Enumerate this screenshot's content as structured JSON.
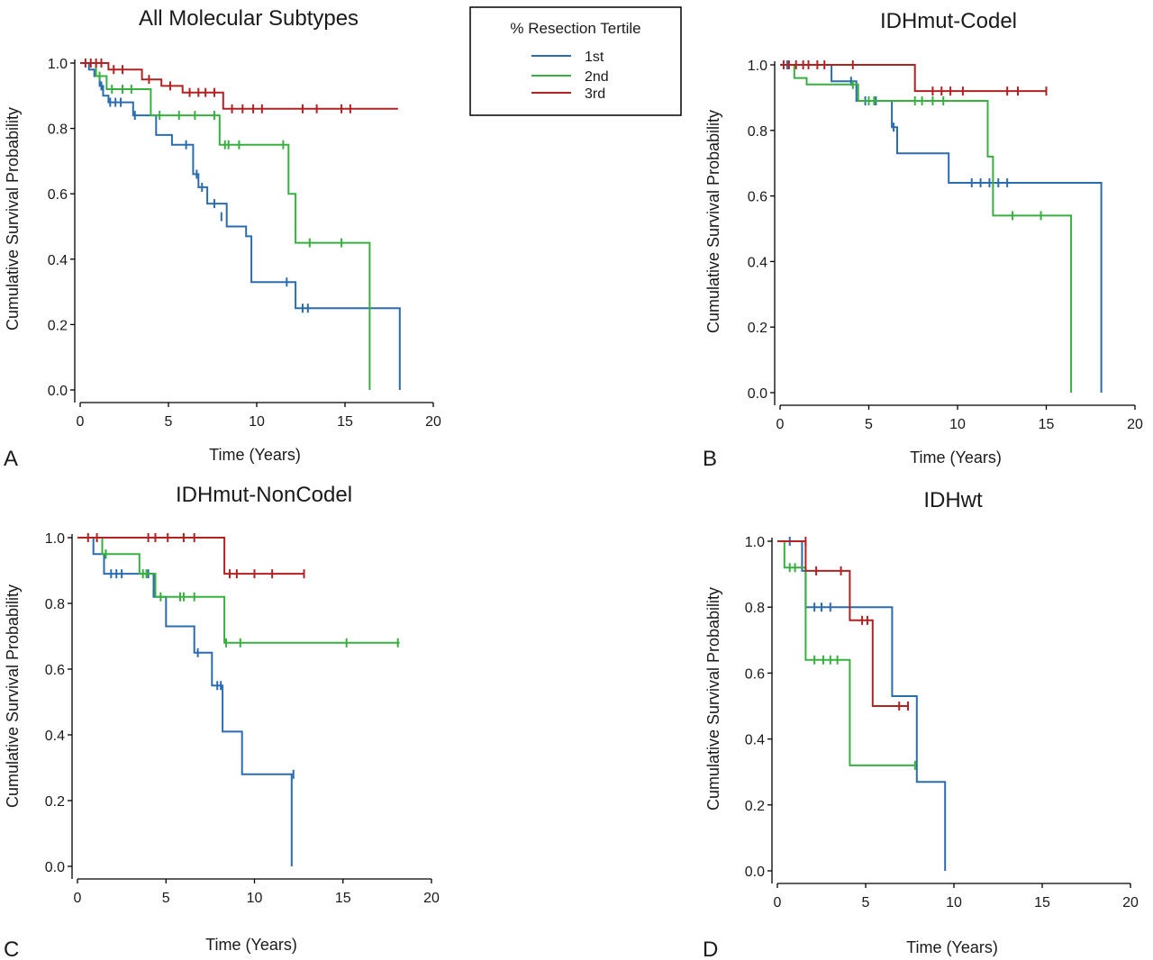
{
  "figure": {
    "legend": {
      "title": "% Resection Tertile",
      "position": "top-center",
      "items": [
        {
          "label": "1st",
          "color": "#2b6cb0"
        },
        {
          "label": "2nd",
          "color": "#38b040"
        },
        {
          "label": "3rd",
          "color": "#b22222"
        }
      ]
    }
  },
  "chart_data": [
    {
      "panel_label": "A",
      "type": "line",
      "subtype": "kaplan-meier step",
      "title": "All Molecular Subtypes",
      "xlabel": "Time (Years)",
      "ylabel": "Cumulative Survival Probability",
      "xlim": [
        0,
        20
      ],
      "ylim": [
        0,
        1.0
      ],
      "xticks": [
        "0",
        "5",
        "10",
        "15",
        "20"
      ],
      "yticks": [
        "0.0",
        "0.2",
        "0.4",
        "0.6",
        "0.8",
        "1.0"
      ],
      "grid": false,
      "series": [
        {
          "name": "1st",
          "color": "#2b6cb0",
          "steps": [
            [
              0,
              1.0
            ],
            [
              0.5,
              0.98
            ],
            [
              0.8,
              0.96
            ],
            [
              1.1,
              0.93
            ],
            [
              1.3,
              0.9
            ],
            [
              1.6,
              0.88
            ],
            [
              3.0,
              0.84
            ],
            [
              4.3,
              0.78
            ],
            [
              5.2,
              0.75
            ],
            [
              6.4,
              0.66
            ],
            [
              6.7,
              0.62
            ],
            [
              7.2,
              0.57
            ],
            [
              8.3,
              0.5
            ],
            [
              9.4,
              0.47
            ],
            [
              9.7,
              0.33
            ],
            [
              12.2,
              0.25
            ],
            [
              18.1,
              0.25
            ],
            [
              18.1,
              0.0
            ]
          ],
          "censors": [
            [
              1.2,
              0.93
            ],
            [
              1.7,
              0.88
            ],
            [
              2.0,
              0.88
            ],
            [
              2.3,
              0.88
            ],
            [
              3.1,
              0.84
            ],
            [
              6.0,
              0.75
            ],
            [
              6.6,
              0.66
            ],
            [
              6.9,
              0.62
            ],
            [
              7.6,
              0.57
            ],
            [
              8.0,
              0.53
            ],
            [
              11.7,
              0.33
            ],
            [
              12.6,
              0.25
            ],
            [
              12.9,
              0.25
            ]
          ]
        },
        {
          "name": "2nd",
          "color": "#38b040",
          "steps": [
            [
              0,
              1.0
            ],
            [
              0.9,
              0.96
            ],
            [
              1.5,
              0.92
            ],
            [
              4.0,
              0.84
            ],
            [
              7.9,
              0.75
            ],
            [
              11.8,
              0.6
            ],
            [
              12.2,
              0.45
            ],
            [
              16.4,
              0.0
            ]
          ],
          "censors": [
            [
              1.1,
              0.96
            ],
            [
              1.8,
              0.92
            ],
            [
              2.4,
              0.92
            ],
            [
              2.9,
              0.92
            ],
            [
              4.5,
              0.84
            ],
            [
              5.6,
              0.84
            ],
            [
              6.5,
              0.84
            ],
            [
              7.6,
              0.84
            ],
            [
              8.2,
              0.75
            ],
            [
              8.4,
              0.75
            ],
            [
              9.0,
              0.75
            ],
            [
              11.5,
              0.75
            ],
            [
              13.0,
              0.45
            ],
            [
              14.8,
              0.45
            ]
          ]
        },
        {
          "name": "3rd",
          "color": "#b22222",
          "steps": [
            [
              0,
              1.0
            ],
            [
              1.6,
              0.98
            ],
            [
              3.5,
              0.95
            ],
            [
              4.6,
              0.93
            ],
            [
              5.8,
              0.91
            ],
            [
              8.1,
              0.86
            ],
            [
              18.0,
              0.86
            ]
          ],
          "censors": [
            [
              0.3,
              1.0
            ],
            [
              0.6,
              1.0
            ],
            [
              0.9,
              1.0
            ],
            [
              1.2,
              1.0
            ],
            [
              1.9,
              0.98
            ],
            [
              2.4,
              0.98
            ],
            [
              3.9,
              0.95
            ],
            [
              5.1,
              0.93
            ],
            [
              6.2,
              0.91
            ],
            [
              6.7,
              0.91
            ],
            [
              7.1,
              0.91
            ],
            [
              7.6,
              0.91
            ],
            [
              8.6,
              0.86
            ],
            [
              9.2,
              0.86
            ],
            [
              9.8,
              0.86
            ],
            [
              10.3,
              0.86
            ],
            [
              12.6,
              0.86
            ],
            [
              13.4,
              0.86
            ],
            [
              14.8,
              0.86
            ],
            [
              15.3,
              0.86
            ]
          ]
        }
      ]
    },
    {
      "panel_label": "B",
      "type": "line",
      "subtype": "kaplan-meier step",
      "title": "IDHmut-Codel",
      "xlabel": "Time (Years)",
      "ylabel": "Cumulative Survival Probability",
      "xlim": [
        0,
        20
      ],
      "ylim": [
        0,
        1.0
      ],
      "xticks": [
        "0",
        "5",
        "10",
        "15",
        "20"
      ],
      "yticks": [
        "0.0",
        "0.2",
        "0.4",
        "0.6",
        "0.8",
        "1.0"
      ],
      "grid": false,
      "series": [
        {
          "name": "1st",
          "color": "#2b6cb0",
          "steps": [
            [
              0,
              1.0
            ],
            [
              2.9,
              0.95
            ],
            [
              4.3,
              0.89
            ],
            [
              6.3,
              0.81
            ],
            [
              6.6,
              0.73
            ],
            [
              9.5,
              0.64
            ],
            [
              18.1,
              0.64
            ],
            [
              18.1,
              0.0
            ]
          ],
          "censors": [
            [
              0.4,
              1.0
            ],
            [
              4.0,
              0.95
            ],
            [
              4.8,
              0.89
            ],
            [
              5.4,
              0.89
            ],
            [
              6.4,
              0.81
            ],
            [
              10.8,
              0.64
            ],
            [
              11.3,
              0.64
            ],
            [
              11.8,
              0.64
            ],
            [
              12.3,
              0.64
            ],
            [
              12.8,
              0.64
            ]
          ]
        },
        {
          "name": "2nd",
          "color": "#38b040",
          "steps": [
            [
              0,
              1.0
            ],
            [
              0.8,
              0.96
            ],
            [
              1.5,
              0.94
            ],
            [
              4.4,
              0.89
            ],
            [
              11.7,
              0.72
            ],
            [
              12.0,
              0.54
            ],
            [
              16.4,
              0.54
            ],
            [
              16.4,
              0.0
            ]
          ],
          "censors": [
            [
              4.1,
              0.94
            ],
            [
              5.0,
              0.89
            ],
            [
              5.3,
              0.89
            ],
            [
              7.6,
              0.89
            ],
            [
              8.0,
              0.89
            ],
            [
              8.6,
              0.89
            ],
            [
              9.2,
              0.89
            ],
            [
              13.1,
              0.54
            ],
            [
              14.7,
              0.54
            ]
          ]
        },
        {
          "name": "3rd",
          "color": "#b22222",
          "steps": [
            [
              0,
              1.0
            ],
            [
              7.6,
              0.92
            ],
            [
              15.0,
              0.92
            ]
          ],
          "censors": [
            [
              0.2,
              1.0
            ],
            [
              0.5,
              1.0
            ],
            [
              0.9,
              1.0
            ],
            [
              1.3,
              1.0
            ],
            [
              1.6,
              1.0
            ],
            [
              2.1,
              1.0
            ],
            [
              2.5,
              1.0
            ],
            [
              4.1,
              1.0
            ],
            [
              8.6,
              0.92
            ],
            [
              9.1,
              0.92
            ],
            [
              9.6,
              0.92
            ],
            [
              10.3,
              0.92
            ],
            [
              12.8,
              0.92
            ],
            [
              13.4,
              0.92
            ],
            [
              15.0,
              0.92
            ]
          ]
        }
      ]
    },
    {
      "panel_label": "C",
      "type": "line",
      "subtype": "kaplan-meier step",
      "title": "IDHmut-NonCodel",
      "xlabel": "Time (Years)",
      "ylabel": "Cumulative Survival Probability",
      "xlim": [
        0,
        20
      ],
      "ylim": [
        0,
        1.0
      ],
      "xticks": [
        "0",
        "5",
        "10",
        "15",
        "20"
      ],
      "yticks": [
        "0.0",
        "0.2",
        "0.4",
        "0.6",
        "0.8",
        "1.0"
      ],
      "grid": false,
      "series": [
        {
          "name": "1st",
          "color": "#2b6cb0",
          "steps": [
            [
              0,
              1.0
            ],
            [
              0.9,
              0.95
            ],
            [
              1.5,
              0.89
            ],
            [
              4.3,
              0.82
            ],
            [
              5.0,
              0.73
            ],
            [
              6.6,
              0.65
            ],
            [
              7.6,
              0.55
            ],
            [
              8.2,
              0.41
            ],
            [
              9.3,
              0.28
            ],
            [
              12.1,
              0.28
            ],
            [
              12.1,
              0.0
            ]
          ],
          "censors": [
            [
              1.6,
              0.95
            ],
            [
              1.9,
              0.89
            ],
            [
              2.2,
              0.89
            ],
            [
              2.5,
              0.89
            ],
            [
              4.0,
              0.89
            ],
            [
              6.8,
              0.65
            ],
            [
              7.9,
              0.55
            ],
            [
              8.1,
              0.55
            ],
            [
              12.2,
              0.28
            ]
          ]
        },
        {
          "name": "2nd",
          "color": "#38b040",
          "steps": [
            [
              0,
              1.0
            ],
            [
              1.4,
              0.95
            ],
            [
              3.5,
              0.89
            ],
            [
              4.4,
              0.82
            ],
            [
              8.3,
              0.68
            ],
            [
              18.2,
              0.68
            ]
          ],
          "censors": [
            [
              1.6,
              0.95
            ],
            [
              3.7,
              0.89
            ],
            [
              3.9,
              0.89
            ],
            [
              4.7,
              0.82
            ],
            [
              5.8,
              0.82
            ],
            [
              6.0,
              0.82
            ],
            [
              6.6,
              0.82
            ],
            [
              8.4,
              0.68
            ],
            [
              9.2,
              0.68
            ],
            [
              15.2,
              0.68
            ],
            [
              18.1,
              0.68
            ]
          ]
        },
        {
          "name": "3rd",
          "color": "#b22222",
          "steps": [
            [
              0,
              1.0
            ],
            [
              8.3,
              0.89
            ],
            [
              12.8,
              0.89
            ]
          ],
          "censors": [
            [
              0.6,
              1.0
            ],
            [
              1.1,
              1.0
            ],
            [
              4.0,
              1.0
            ],
            [
              4.4,
              1.0
            ],
            [
              5.1,
              1.0
            ],
            [
              6.0,
              1.0
            ],
            [
              6.6,
              1.0
            ],
            [
              8.6,
              0.89
            ],
            [
              9.0,
              0.89
            ],
            [
              10.0,
              0.89
            ],
            [
              11.0,
              0.89
            ],
            [
              12.8,
              0.89
            ]
          ]
        }
      ]
    },
    {
      "panel_label": "D",
      "type": "line",
      "subtype": "kaplan-meier step",
      "title": "IDHwt",
      "xlabel": "Time (Years)",
      "ylabel": "Cumulative Survival Probability",
      "xlim": [
        0,
        20
      ],
      "ylim": [
        0,
        1.0
      ],
      "xticks": [
        "0",
        "5",
        "10",
        "15",
        "20"
      ],
      "yticks": [
        "0.0",
        "0.2",
        "0.4",
        "0.6",
        "0.8",
        "1.0"
      ],
      "grid": false,
      "series": [
        {
          "name": "1st",
          "color": "#2b6cb0",
          "steps": [
            [
              0,
              1.0
            ],
            [
              1.4,
              0.91
            ],
            [
              1.6,
              0.8
            ],
            [
              6.5,
              0.53
            ],
            [
              7.9,
              0.27
            ],
            [
              9.5,
              0.27
            ],
            [
              9.5,
              0.0
            ]
          ],
          "censors": [
            [
              0.7,
              1.0
            ],
            [
              2.1,
              0.8
            ],
            [
              2.5,
              0.8
            ],
            [
              3.0,
              0.8
            ]
          ]
        },
        {
          "name": "2nd",
          "color": "#38b040",
          "steps": [
            [
              0,
              1.0
            ],
            [
              0.4,
              0.92
            ],
            [
              1.6,
              0.64
            ],
            [
              4.1,
              0.32
            ],
            [
              7.8,
              0.32
            ]
          ],
          "censors": [
            [
              0.7,
              0.92
            ],
            [
              1.0,
              0.92
            ],
            [
              2.1,
              0.64
            ],
            [
              2.6,
              0.64
            ],
            [
              3.0,
              0.64
            ],
            [
              3.4,
              0.64
            ],
            [
              7.8,
              0.32
            ]
          ]
        },
        {
          "name": "3rd",
          "color": "#b22222",
          "steps": [
            [
              0,
              1.0
            ],
            [
              1.6,
              0.91
            ],
            [
              4.1,
              0.76
            ],
            [
              5.4,
              0.5
            ],
            [
              7.4,
              0.5
            ]
          ],
          "censors": [
            [
              1.6,
              1.0
            ],
            [
              2.2,
              0.91
            ],
            [
              3.6,
              0.91
            ],
            [
              4.8,
              0.76
            ],
            [
              5.1,
              0.76
            ],
            [
              6.9,
              0.5
            ],
            [
              7.4,
              0.5
            ]
          ]
        }
      ]
    }
  ]
}
